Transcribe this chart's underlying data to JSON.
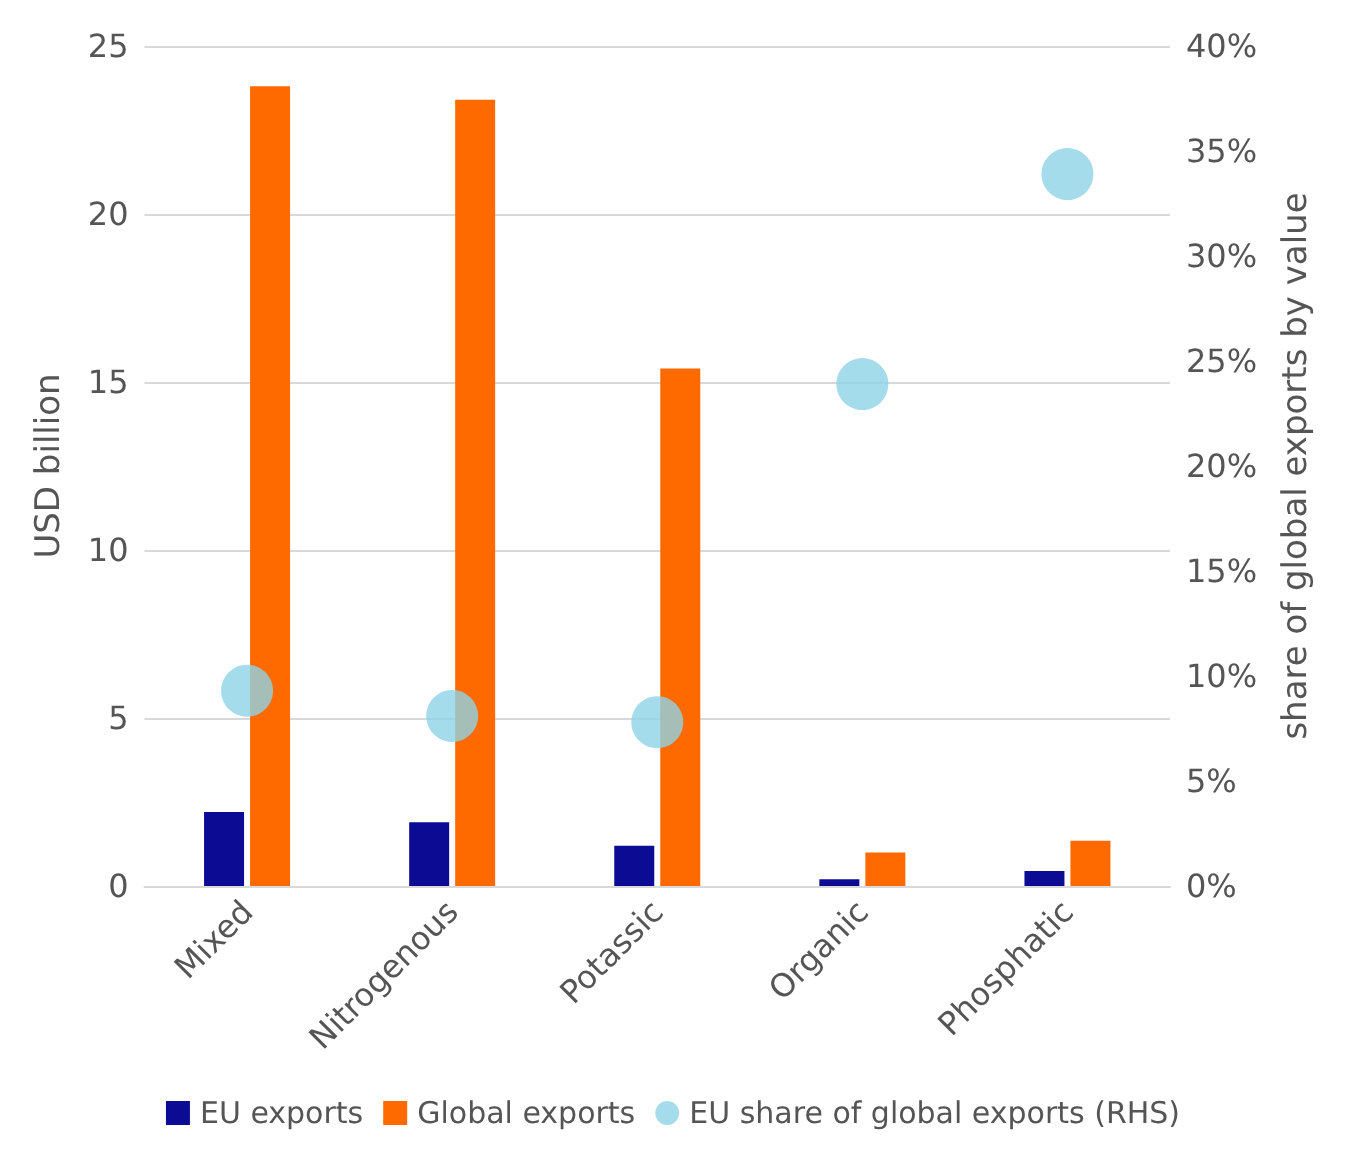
{
  "chart_data": {
    "type": "bar",
    "categories": [
      "Mixed",
      "Nitrogenous",
      "Potassic",
      "Organic",
      "Phosphatic"
    ],
    "series": [
      {
        "name": "EU exports",
        "color": "#0b0b94",
        "values": [
          2.2,
          1.9,
          1.2,
          0.2,
          0.45
        ]
      },
      {
        "name": "Global exports",
        "color": "#ff6a00",
        "values": [
          23.8,
          23.4,
          15.4,
          1.0,
          1.35
        ]
      },
      {
        "name": "EU share of global exports (RHS)",
        "type": "scatter",
        "axis": "y2",
        "color": "#8ed3e6",
        "values": [
          9.3,
          8.1,
          7.8,
          23.9,
          33.9
        ]
      }
    ],
    "ylabel": "USD billion",
    "y2label": "share of global exports by value",
    "ylim": [
      0,
      25
    ],
    "yticks": [
      0,
      5,
      10,
      15,
      20,
      25
    ],
    "y2lim": [
      0,
      40
    ],
    "y2ticks": [
      {
        "value": 0,
        "label": "0%"
      },
      {
        "value": 5,
        "label": "5%"
      },
      {
        "value": 10,
        "label": "10%"
      },
      {
        "value": 15,
        "label": "15%"
      },
      {
        "value": 20,
        "label": "20%"
      },
      {
        "value": 25,
        "label": "25%"
      },
      {
        "value": 30,
        "label": "30%"
      },
      {
        "value": 35,
        "label": "35%"
      },
      {
        "value": 40,
        "label": "40%"
      }
    ],
    "grid": "y",
    "legend": "bottom",
    "marker": "circle"
  }
}
